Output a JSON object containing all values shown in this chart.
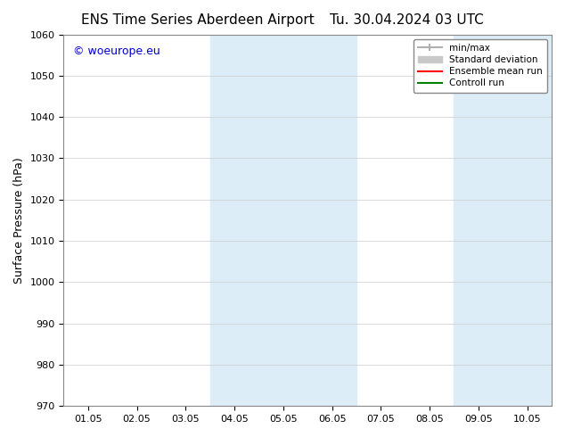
{
  "title_left": "ENS Time Series Aberdeen Airport",
  "title_right": "Tu. 30.04.2024 03 UTC",
  "ylabel": "Surface Pressure (hPa)",
  "ylim": [
    970,
    1060
  ],
  "yticks": [
    970,
    980,
    990,
    1000,
    1010,
    1020,
    1030,
    1040,
    1050,
    1060
  ],
  "xtick_labels": [
    "01.05",
    "02.05",
    "03.05",
    "04.05",
    "05.05",
    "06.05",
    "07.05",
    "08.05",
    "09.05",
    "10.05"
  ],
  "xtick_positions": [
    0,
    1,
    2,
    3,
    4,
    5,
    6,
    7,
    8,
    9
  ],
  "xlim": [
    -0.5,
    9.5
  ],
  "shaded_regions": [
    {
      "x_start": 2.5,
      "x_end": 5.5,
      "color": "#ddedf8"
    },
    {
      "x_start": 7.5,
      "x_end": 9.6,
      "color": "#ddedf8"
    }
  ],
  "watermark_text": "© woeurope.eu",
  "watermark_color": "#0000cc",
  "legend_items": [
    {
      "label": "min/max",
      "color": "#b0b0b0",
      "lw": 1.5,
      "ls": "-",
      "type": "line_caps"
    },
    {
      "label": "Standard deviation",
      "color": "#c8c8c8",
      "lw": 6,
      "ls": "-",
      "type": "patch"
    },
    {
      "label": "Ensemble mean run",
      "color": "red",
      "lw": 1.5,
      "ls": "-",
      "type": "line"
    },
    {
      "label": "Controll run",
      "color": "green",
      "lw": 1.5,
      "ls": "-",
      "type": "line"
    }
  ],
  "bg_color": "#ffffff",
  "plot_bg_color": "#ffffff",
  "title_fontsize": 11,
  "tick_fontsize": 8,
  "ylabel_fontsize": 9
}
